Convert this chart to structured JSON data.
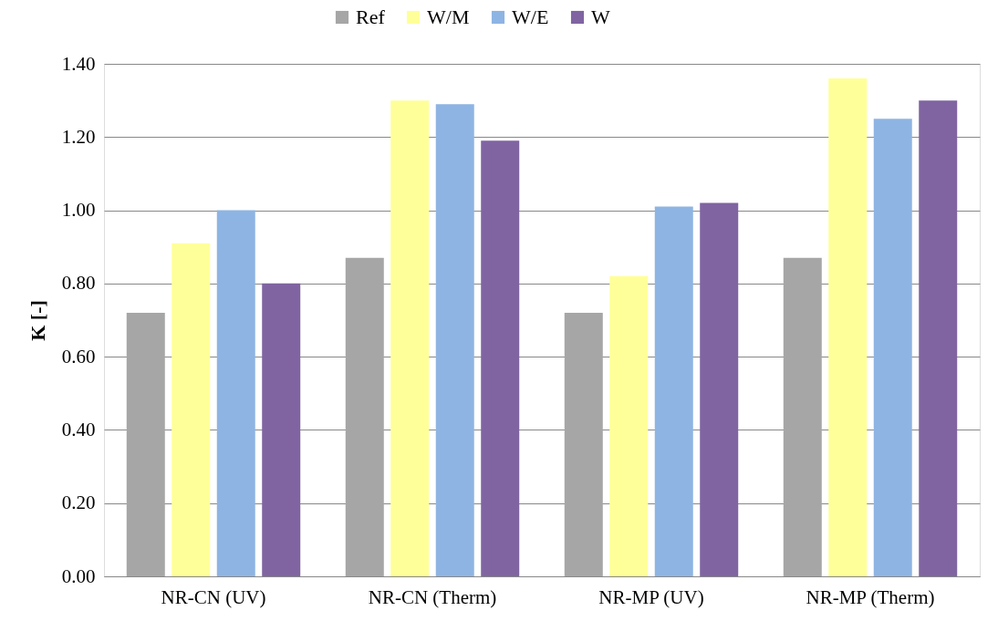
{
  "chart_data": {
    "type": "bar",
    "ylabel": "K [-]",
    "categories": [
      "NR-CN (UV)",
      "NR-CN (Therm)",
      "NR-MP (UV)",
      "NR-MP (Therm)"
    ],
    "series": [
      {
        "name": "Ref",
        "color": "#a6a6a6",
        "values": [
          0.72,
          0.87,
          0.72,
          0.87
        ]
      },
      {
        "name": "W/M",
        "color": "#ffff99",
        "values": [
          0.91,
          1.3,
          0.82,
          1.36
        ]
      },
      {
        "name": "W/E",
        "color": "#8eb4e3",
        "values": [
          1.0,
          1.29,
          1.01,
          1.25
        ]
      },
      {
        "name": "W",
        "color": "#8064a2",
        "values": [
          0.8,
          1.19,
          1.02,
          1.3
        ]
      }
    ],
    "ylim": [
      0,
      1.4
    ],
    "yticks": [
      {
        "value": 0,
        "label": "0.00"
      },
      {
        "value": 0.2,
        "label": "0.20"
      },
      {
        "value": 0.4,
        "label": "0.40"
      },
      {
        "value": 0.6,
        "label": "0.60"
      },
      {
        "value": 0.8,
        "label": "0.80"
      },
      {
        "value": 1.0,
        "label": "1.00"
      },
      {
        "value": 1.2,
        "label": "1.20"
      },
      {
        "value": 1.4,
        "label": "1.40"
      }
    ],
    "grid": "y",
    "legend": "top"
  }
}
